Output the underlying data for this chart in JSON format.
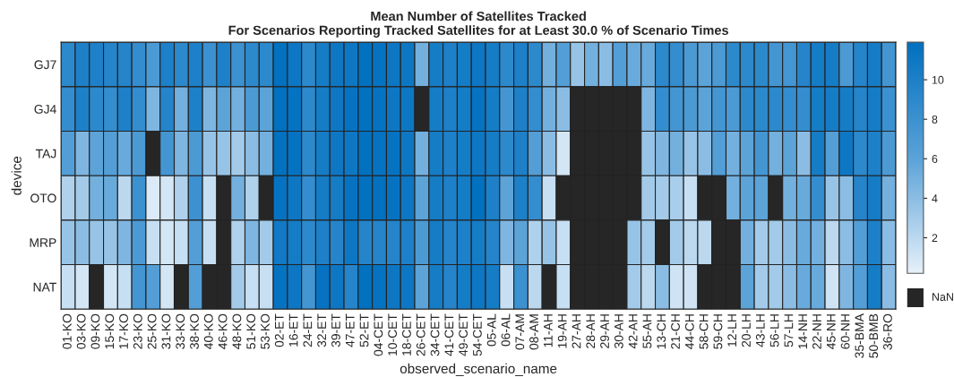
{
  "chart_data": {
    "type": "heatmap",
    "title": "Mean Number of Satellites Tracked",
    "subtitle": "For Scenarios Reporting Tracked Satellites for at Least 30.0 % of Scenario Times",
    "xlabel": "observed_scenario_name",
    "ylabel": "device",
    "categories": [
      "01-KO",
      "03-KO",
      "09-KO",
      "15-KO",
      "17-KO",
      "23-KO",
      "25-KO",
      "31-KO",
      "33-KO",
      "38-KO",
      "40-KO",
      "46-KO",
      "48-KO",
      "51-KO",
      "53-KO",
      "02-ET",
      "16-ET",
      "24-ET",
      "32-ET",
      "39-ET",
      "47-ET",
      "52-ET",
      "04-CET",
      "10-CET",
      "18-CET",
      "26-CET",
      "34-CET",
      "41-CET",
      "49-CET",
      "54-CET",
      "05-AL",
      "06-AL",
      "07-AM",
      "08-AM",
      "11-AH",
      "19-AH",
      "27-AH",
      "28-AH",
      "29-AH",
      "30-AH",
      "42-AH",
      "55-AH",
      "13-CH",
      "21-CH",
      "44-CH",
      "58-CH",
      "59-CH",
      "12-LH",
      "20-LH",
      "43-LH",
      "56-LH",
      "57-LH",
      "14-NH",
      "22-NH",
      "45-NH",
      "60-NH",
      "35-BMA",
      "50-BMB",
      "36-RO"
    ],
    "y_categories": [
      "GJ7",
      "GJ4",
      "TAJ",
      "OTO",
      "MRP",
      "NAT"
    ],
    "cells": [
      [
        9,
        10,
        10,
        9.5,
        9.5,
        8.5,
        7,
        10,
        9,
        10,
        8,
        10,
        8,
        9,
        9,
        11.8,
        11,
        9,
        10.5,
        11,
        11,
        11.8,
        11.5,
        11,
        11,
        5,
        10.5,
        10,
        10.5,
        11,
        10.5,
        9,
        10,
        9,
        5,
        6.5,
        3.5,
        5,
        4,
        6.5,
        5.5,
        5.5,
        9,
        8.5,
        7,
        6,
        7,
        9,
        9,
        9,
        7.5,
        7.5,
        9.5,
        10.5,
        10.5,
        7,
        9.5,
        10.5,
        7.5
      ],
      [
        8.5,
        10,
        9,
        8.5,
        10,
        8.5,
        4.5,
        9.5,
        5,
        10,
        4.5,
        6,
        5,
        7,
        6,
        11.8,
        11.5,
        9,
        10.5,
        11,
        11.5,
        11.8,
        11.5,
        11,
        11,
        null,
        10.5,
        10,
        10.5,
        11.5,
        10.5,
        7.5,
        10,
        8.5,
        5,
        4,
        null,
        null,
        null,
        null,
        null,
        4.5,
        8.5,
        7.5,
        7,
        6,
        7.5,
        7,
        9,
        9,
        9,
        8.5,
        8.5,
        10.5,
        10.5,
        10.5,
        9.5,
        10.5,
        8
      ],
      [
        6.5,
        4.5,
        6,
        6.5,
        5.5,
        7,
        null,
        7.5,
        4.5,
        7,
        3.5,
        3.5,
        3,
        4,
        5,
        11.8,
        11.5,
        9,
        10.5,
        11,
        11,
        11.8,
        11.5,
        11.5,
        11,
        5,
        10.5,
        10,
        10.5,
        11,
        10.5,
        9,
        10,
        6.5,
        4,
        1,
        null,
        null,
        null,
        null,
        null,
        3.5,
        4.5,
        5,
        3.5,
        4,
        6.5,
        5,
        6,
        7.5,
        5,
        6,
        4,
        10.5,
        6.5,
        11,
        9,
        10,
        7
      ],
      [
        2.5,
        3,
        5,
        5.5,
        2,
        8,
        0.7,
        1,
        2.5,
        8,
        1.5,
        null,
        5,
        2.5,
        null,
        11.5,
        11,
        8.5,
        10.5,
        10.5,
        11.5,
        11.8,
        11.8,
        11.5,
        11,
        6,
        10.5,
        10,
        10.5,
        11.8,
        10,
        6,
        10,
        8.5,
        1.5,
        null,
        null,
        null,
        null,
        null,
        null,
        3,
        3,
        2.8,
        1.5,
        null,
        null,
        5,
        6,
        6,
        null,
        5,
        5.5,
        8.5,
        3.5,
        4,
        9.5,
        10.5,
        5
      ],
      [
        3.5,
        4,
        3.5,
        3.5,
        4.5,
        7,
        1.5,
        1,
        1.5,
        6.5,
        1.5,
        null,
        2.5,
        4.5,
        3,
        10.8,
        10.5,
        9,
        10,
        9.5,
        11,
        9.5,
        9.5,
        9.5,
        10,
        7,
        10.5,
        9.5,
        10,
        10.5,
        9.5,
        4.5,
        6,
        2.5,
        3.5,
        1.5,
        null,
        null,
        null,
        null,
        3.5,
        3,
        null,
        3,
        2,
        2,
        null,
        null,
        5,
        3,
        3,
        4,
        5.5,
        5,
        2,
        4,
        6.5,
        10,
        4
      ],
      [
        1.5,
        1,
        null,
        1,
        1.5,
        7.5,
        6.5,
        1,
        null,
        6.5,
        null,
        null,
        3,
        1.5,
        1.5,
        11.5,
        11,
        7.5,
        11.5,
        11,
        9.5,
        11.8,
        11.5,
        11,
        11,
        6,
        10.5,
        9.5,
        10.5,
        11,
        10.5,
        1.5,
        8,
        2,
        null,
        1.5,
        null,
        null,
        null,
        null,
        3,
        2,
        4,
        1.2,
        1.2,
        null,
        null,
        null,
        6,
        3,
        3,
        4,
        5.5,
        5.5,
        1.2,
        4.5,
        6.5,
        10.5,
        4
      ]
    ],
    "clim": [
      0.2,
      11.9
    ],
    "cticks": [
      2,
      4,
      6,
      8,
      10
    ],
    "annotations": [
      "NaN"
    ]
  }
}
